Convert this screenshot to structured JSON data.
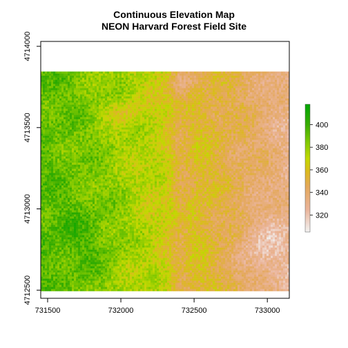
{
  "title": {
    "line1": "Continuous Elevation Map",
    "line2": "NEON Harvard Forest Field Site"
  },
  "map": {
    "x_range": [
      731453,
      733150
    ],
    "y_range": [
      4712450,
      4714030
    ],
    "raster_extent": {
      "x": [
        731453,
        733150
      ],
      "y": [
        4712495,
        4713845
      ]
    },
    "x_ticks": [
      731500,
      732000,
      732500,
      733000
    ],
    "y_ticks": [
      4712500,
      4713000,
      4713500,
      4714000
    ],
    "grid": false,
    "legend_position": "right",
    "color_scale": {
      "range": [
        305,
        418
      ],
      "ticks": [
        320,
        340,
        360,
        380,
        400
      ],
      "stops": [
        {
          "v": 305,
          "color": "#f2f2f2"
        },
        {
          "v": 325,
          "color": "#eab49a"
        },
        {
          "v": 345,
          "color": "#e4a85c"
        },
        {
          "v": 358,
          "color": "#dcb820"
        },
        {
          "v": 370,
          "color": "#c2d800"
        },
        {
          "v": 385,
          "color": "#7ec800"
        },
        {
          "v": 400,
          "color": "#38ac00"
        },
        {
          "v": 418,
          "color": "#00a600"
        }
      ]
    }
  }
}
